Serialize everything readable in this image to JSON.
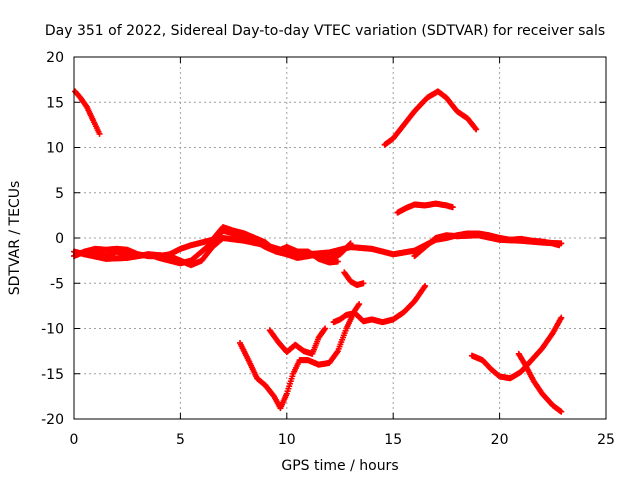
{
  "chart_data": {
    "type": "scatter",
    "title": "Day 351 of 2022, Sidereal Day-to-day VTEC variation (SDTVAR) for receiver sals",
    "xlabel": "GPS time / hours",
    "ylabel": "SDTVAR / TECUs",
    "xlim": [
      0,
      25
    ],
    "ylim": [
      -20,
      20
    ],
    "xticks": [
      0,
      5,
      10,
      15,
      20,
      25
    ],
    "yticks": [
      -20,
      -15,
      -10,
      -5,
      0,
      5,
      10,
      15,
      20
    ],
    "grid": true,
    "marker": "+",
    "color": "#ff0000",
    "series": [
      {
        "name": "arc-top-left",
        "points": [
          [
            0.05,
            16.2
          ],
          [
            0.3,
            15.5
          ],
          [
            0.6,
            14.5
          ],
          [
            0.9,
            13.0
          ],
          [
            1.2,
            11.5
          ]
        ]
      },
      {
        "name": "arc-peak",
        "points": [
          [
            14.6,
            10.3
          ],
          [
            15.0,
            11.0
          ],
          [
            15.5,
            12.5
          ],
          [
            16.0,
            14.0
          ],
          [
            16.6,
            15.5
          ],
          [
            17.1,
            16.2
          ],
          [
            17.5,
            15.5
          ],
          [
            18.0,
            14.0
          ],
          [
            18.5,
            13.2
          ],
          [
            18.9,
            12.0
          ]
        ]
      },
      {
        "name": "arc-5tecu",
        "points": [
          [
            15.2,
            2.8
          ],
          [
            15.6,
            3.3
          ],
          [
            16.0,
            3.7
          ],
          [
            16.5,
            3.6
          ],
          [
            17.0,
            3.8
          ],
          [
            17.5,
            3.6
          ],
          [
            17.8,
            3.4
          ]
        ]
      },
      {
        "name": "arc-near-zero-a",
        "points": [
          [
            0.0,
            -1.5
          ],
          [
            0.5,
            -1.8
          ],
          [
            1.0,
            -1.5
          ],
          [
            1.5,
            -2.0
          ],
          [
            2.0,
            -1.5
          ],
          [
            2.5,
            -1.8
          ],
          [
            3.0,
            -2.0
          ],
          [
            3.5,
            -1.8
          ],
          [
            4.0,
            -2.2
          ],
          [
            4.5,
            -2.5
          ],
          [
            5.0,
            -2.8
          ],
          [
            5.5,
            -2.5
          ],
          [
            6.0,
            -1.5
          ],
          [
            6.5,
            -0.5
          ],
          [
            7.0,
            0.8
          ],
          [
            7.5,
            0.5
          ],
          [
            8.0,
            0.2
          ],
          [
            8.5,
            -0.3
          ],
          [
            9.0,
            -1.0
          ],
          [
            9.5,
            -1.5
          ],
          [
            10.0,
            -1.8
          ],
          [
            10.5,
            -2.2
          ],
          [
            11.0,
            -2.0
          ],
          [
            11.5,
            -1.8
          ],
          [
            12.0,
            -2.3
          ],
          [
            12.5,
            -1.8
          ],
          [
            13.0,
            -0.6
          ]
        ]
      },
      {
        "name": "arc-near-zero-b",
        "points": [
          [
            0.0,
            -2.0
          ],
          [
            0.5,
            -1.5
          ],
          [
            1.0,
            -1.2
          ],
          [
            1.5,
            -1.3
          ],
          [
            2.0,
            -1.2
          ],
          [
            2.5,
            -1.3
          ],
          [
            3.0,
            -1.8
          ],
          [
            3.5,
            -2.0
          ],
          [
            4.0,
            -2.0
          ],
          [
            4.5,
            -1.8
          ],
          [
            5.0,
            -1.2
          ],
          [
            5.5,
            -0.8
          ],
          [
            6.0,
            -0.5
          ],
          [
            6.5,
            -0.2
          ],
          [
            7.0,
            1.2
          ],
          [
            7.5,
            0.8
          ],
          [
            8.0,
            0.5
          ],
          [
            8.5,
            0.0
          ],
          [
            9.0,
            -0.5
          ],
          [
            9.5,
            -1.5
          ],
          [
            10.0,
            -1.0
          ],
          [
            10.5,
            -1.5
          ],
          [
            11.0,
            -1.5
          ],
          [
            11.5,
            -2.3
          ],
          [
            12.0,
            -2.7
          ],
          [
            12.4,
            -2.6
          ]
        ]
      },
      {
        "name": "arc-near-zero-c",
        "points": [
          [
            0.5,
            -1.8
          ],
          [
            1.5,
            -2.3
          ],
          [
            2.5,
            -2.2
          ],
          [
            3.5,
            -1.8
          ],
          [
            4.5,
            -2.0
          ],
          [
            5.5,
            -3.0
          ],
          [
            6.0,
            -2.5
          ],
          [
            6.5,
            -1.0
          ],
          [
            7.0,
            0.0
          ],
          [
            8.0,
            -0.3
          ],
          [
            9.0,
            -0.8
          ],
          [
            10.0,
            -1.5
          ],
          [
            11.0,
            -1.8
          ],
          [
            12.0,
            -1.6
          ],
          [
            13.0,
            -1.0
          ],
          [
            14.0,
            -1.2
          ],
          [
            15.0,
            -1.8
          ],
          [
            16.0,
            -1.4
          ],
          [
            16.5,
            -0.8
          ],
          [
            17.0,
            -0.2
          ],
          [
            17.5,
            0.0
          ],
          [
            18.0,
            0.3
          ],
          [
            18.5,
            0.5
          ],
          [
            19.0,
            0.5
          ],
          [
            19.5,
            0.3
          ],
          [
            20.0,
            0.0
          ],
          [
            20.5,
            -0.2
          ],
          [
            21.0,
            -0.1
          ],
          [
            21.5,
            -0.3
          ],
          [
            22.0,
            -0.4
          ],
          [
            22.5,
            -0.6
          ],
          [
            22.8,
            -0.8
          ]
        ]
      },
      {
        "name": "arc-mid-right",
        "points": [
          [
            16.0,
            -2.0
          ],
          [
            16.5,
            -1.0
          ],
          [
            17.0,
            0.0
          ],
          [
            17.5,
            0.3
          ],
          [
            18.0,
            0.2
          ],
          [
            19.0,
            0.3
          ],
          [
            20.0,
            -0.2
          ],
          [
            21.0,
            -0.3
          ],
          [
            22.0,
            -0.5
          ],
          [
            22.9,
            -0.6
          ]
        ]
      },
      {
        "name": "arc-small-dip",
        "points": [
          [
            12.7,
            -3.8
          ],
          [
            13.0,
            -4.8
          ],
          [
            13.3,
            -5.2
          ],
          [
            13.6,
            -5.0
          ]
        ]
      },
      {
        "name": "arc-lower-mid",
        "points": [
          [
            12.2,
            -9.3
          ],
          [
            12.5,
            -9.0
          ],
          [
            12.8,
            -8.5
          ],
          [
            13.2,
            -8.3
          ],
          [
            13.6,
            -9.2
          ],
          [
            14.0,
            -9.0
          ],
          [
            14.5,
            -9.3
          ],
          [
            15.0,
            -9.0
          ],
          [
            15.5,
            -8.2
          ],
          [
            16.0,
            -7.0
          ],
          [
            16.5,
            -5.3
          ]
        ]
      },
      {
        "name": "arc-valley",
        "points": [
          [
            7.8,
            -11.6
          ],
          [
            8.2,
            -13.5
          ],
          [
            8.6,
            -15.5
          ],
          [
            9.0,
            -16.3
          ],
          [
            9.4,
            -17.5
          ],
          [
            9.7,
            -18.8
          ],
          [
            10.0,
            -17.2
          ],
          [
            10.3,
            -15.0
          ],
          [
            10.6,
            -13.5
          ],
          [
            11.0,
            -13.5
          ],
          [
            11.5,
            -14.0
          ],
          [
            12.0,
            -13.8
          ],
          [
            12.4,
            -12.5
          ],
          [
            12.8,
            -10.0
          ],
          [
            13.2,
            -8.0
          ],
          [
            13.4,
            -7.3
          ]
        ]
      },
      {
        "name": "arc-valley-b",
        "points": [
          [
            9.2,
            -10.2
          ],
          [
            9.6,
            -11.5
          ],
          [
            10.0,
            -12.6
          ],
          [
            10.4,
            -11.8
          ],
          [
            10.8,
            -12.5
          ],
          [
            11.2,
            -12.8
          ],
          [
            11.5,
            -11.0
          ],
          [
            11.8,
            -10.0
          ]
        ]
      },
      {
        "name": "arc-bottom-right-a",
        "points": [
          [
            18.7,
            -13.0
          ],
          [
            19.2,
            -13.5
          ],
          [
            19.6,
            -14.5
          ],
          [
            20.0,
            -15.3
          ],
          [
            20.5,
            -15.5
          ],
          [
            21.0,
            -14.8
          ],
          [
            21.5,
            -13.5
          ],
          [
            22.0,
            -12.2
          ],
          [
            22.5,
            -10.5
          ],
          [
            22.9,
            -8.8
          ]
        ]
      },
      {
        "name": "arc-bottom-right-b",
        "points": [
          [
            20.9,
            -12.8
          ],
          [
            21.2,
            -14.0
          ],
          [
            21.6,
            -15.8
          ],
          [
            22.0,
            -17.2
          ],
          [
            22.5,
            -18.5
          ],
          [
            22.9,
            -19.2
          ]
        ]
      }
    ]
  }
}
